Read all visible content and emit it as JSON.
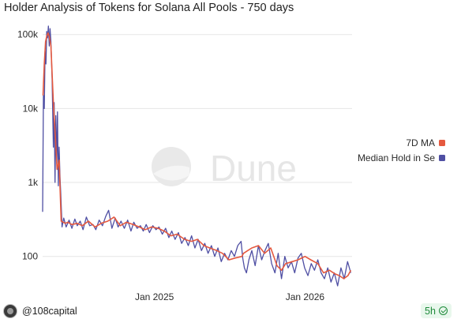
{
  "title": "Holder Analysis of Tokens for Solana All Pools - 750 days",
  "watermark": "Dune",
  "footer": {
    "handle": "@108capital",
    "age": "5h"
  },
  "colors": {
    "ma": "#e5593f",
    "median": "#4f4fa3",
    "grid": "#e6e6e6"
  },
  "icons": {
    "avatar": "user-avatar-icon",
    "status": "check-circle-icon",
    "watermark": "dune-logo-icon"
  },
  "chart_data": {
    "type": "line",
    "x_axis": {
      "type": "date",
      "range": [
        "2024-04-05",
        "2026-04-25"
      ]
    },
    "y_axis": {
      "scale": "log",
      "range": [
        40,
        140000
      ],
      "ticks": [
        "100",
        "1k",
        "10k",
        "100k"
      ]
    },
    "grid": true,
    "legend_position": "right",
    "x_tick_labels": [
      "Jan 2025",
      "Jan 2026"
    ],
    "legend": [
      "7D MA",
      "Median Hold in Se"
    ],
    "series": [
      {
        "name": "7D MA",
        "x": [
          "2024-04-06",
          "2024-04-09",
          "2024-04-12",
          "2024-04-15",
          "2024-04-18",
          "2024-04-21",
          "2024-04-25",
          "2024-05-01",
          "2024-05-06",
          "2024-05-10",
          "2024-05-15",
          "2024-05-20",
          "2024-05-25",
          "2024-05-30",
          "2024-06-05",
          "2024-06-15",
          "2024-06-28",
          "2024-07-10",
          "2024-07-25",
          "2024-08-10",
          "2024-08-25",
          "2024-09-10",
          "2024-09-25",
          "2024-10-10",
          "2024-10-25",
          "2024-11-10",
          "2024-11-25",
          "2024-12-10",
          "2024-12-25",
          "2025-01-10",
          "2025-01-25",
          "2025-02-10",
          "2025-02-25",
          "2025-03-15",
          "2025-04-01",
          "2025-04-15",
          "2025-05-01",
          "2025-05-15",
          "2025-06-01",
          "2025-06-15",
          "2025-07-01",
          "2025-07-15",
          "2025-08-01",
          "2025-08-05",
          "2025-08-15",
          "2025-08-25",
          "2025-09-10",
          "2025-09-25",
          "2025-10-10",
          "2025-10-25",
          "2025-11-05",
          "2025-11-15",
          "2025-12-01",
          "2025-12-15",
          "2026-01-01",
          "2026-01-15",
          "2026-02-01",
          "2026-02-15",
          "2026-03-01",
          "2026-03-15",
          "2026-03-25",
          "2026-04-05",
          "2026-04-15",
          "2026-04-22"
        ],
        "y": [
          15000,
          40000,
          80000,
          95000,
          105000,
          95000,
          70000,
          12000,
          4000,
          1500,
          2000,
          300,
          290,
          280,
          290,
          270,
          280,
          260,
          300,
          250,
          280,
          300,
          340,
          260,
          290,
          270,
          250,
          230,
          250,
          240,
          220,
          190,
          200,
          170,
          160,
          170,
          140,
          130,
          120,
          110,
          90,
          95,
          100,
          110,
          120,
          130,
          140,
          110,
          130,
          75,
          65,
          80,
          85,
          90,
          100,
          90,
          80,
          60,
          65,
          58,
          55,
          50,
          55,
          65
        ]
      },
      {
        "name": "Median Hold in Se",
        "x": [
          "2024-04-05",
          "2024-04-07",
          "2024-04-09",
          "2024-04-11",
          "2024-04-13",
          "2024-04-15",
          "2024-04-17",
          "2024-04-19",
          "2024-04-21",
          "2024-04-23",
          "2024-04-25",
          "2024-04-28",
          "2024-05-01",
          "2024-05-03",
          "2024-05-05",
          "2024-05-07",
          "2024-05-09",
          "2024-05-11",
          "2024-05-13",
          "2024-05-15",
          "2024-05-17",
          "2024-05-19",
          "2024-05-22",
          "2024-05-26",
          "2024-06-01",
          "2024-06-08",
          "2024-06-15",
          "2024-06-22",
          "2024-06-28",
          "2024-07-05",
          "2024-07-12",
          "2024-07-20",
          "2024-07-28",
          "2024-08-05",
          "2024-08-12",
          "2024-08-20",
          "2024-08-28",
          "2024-09-05",
          "2024-09-12",
          "2024-09-20",
          "2024-09-28",
          "2024-10-05",
          "2024-10-12",
          "2024-10-20",
          "2024-10-28",
          "2024-11-05",
          "2024-11-12",
          "2024-11-20",
          "2024-11-28",
          "2024-12-05",
          "2024-12-12",
          "2024-12-20",
          "2024-12-28",
          "2025-01-05",
          "2025-01-12",
          "2025-01-20",
          "2025-01-28",
          "2025-02-05",
          "2025-02-12",
          "2025-02-20",
          "2025-02-28",
          "2025-03-08",
          "2025-03-16",
          "2025-03-24",
          "2025-04-01",
          "2025-04-09",
          "2025-04-17",
          "2025-04-25",
          "2025-05-03",
          "2025-05-11",
          "2025-05-19",
          "2025-05-27",
          "2025-06-04",
          "2025-06-12",
          "2025-06-20",
          "2025-06-28",
          "2025-07-06",
          "2025-07-14",
          "2025-07-22",
          "2025-07-30",
          "2025-08-03",
          "2025-08-07",
          "2025-08-12",
          "2025-08-18",
          "2025-08-25",
          "2025-09-02",
          "2025-09-10",
          "2025-09-18",
          "2025-09-26",
          "2025-10-04",
          "2025-10-12",
          "2025-10-20",
          "2025-10-28",
          "2025-11-05",
          "2025-11-13",
          "2025-11-21",
          "2025-11-29",
          "2025-12-07",
          "2025-12-15",
          "2025-12-23",
          "2025-12-31",
          "2026-01-08",
          "2026-01-16",
          "2026-01-24",
          "2026-02-01",
          "2026-02-09",
          "2026-02-17",
          "2026-02-25",
          "2026-03-05",
          "2026-03-13",
          "2026-03-21",
          "2026-03-29",
          "2026-04-06",
          "2026-04-14",
          "2026-04-22"
        ],
        "y": [
          400,
          15000,
          10000,
          60000,
          40000,
          110000,
          90000,
          130000,
          70000,
          120000,
          80000,
          25000,
          3000,
          12000,
          1000,
          8000,
          1800,
          9000,
          900,
          3000,
          1200,
          700,
          250,
          330,
          250,
          310,
          240,
          320,
          260,
          300,
          230,
          340,
          260,
          270,
          230,
          310,
          260,
          350,
          420,
          240,
          330,
          250,
          300,
          240,
          310,
          220,
          290,
          240,
          260,
          220,
          270,
          210,
          260,
          230,
          250,
          200,
          240,
          180,
          220,
          170,
          210,
          150,
          180,
          140,
          190,
          130,
          170,
          120,
          150,
          110,
          140,
          100,
          130,
          85,
          110,
          90,
          120,
          100,
          140,
          160,
          95,
          70,
          60,
          90,
          120,
          75,
          140,
          90,
          120,
          150,
          80,
          60,
          110,
          50,
          100,
          70,
          85,
          60,
          95,
          110,
          70,
          55,
          80,
          65,
          90,
          60,
          50,
          70,
          45,
          60,
          40,
          70,
          50,
          85,
          60
        ]
      }
    ]
  }
}
